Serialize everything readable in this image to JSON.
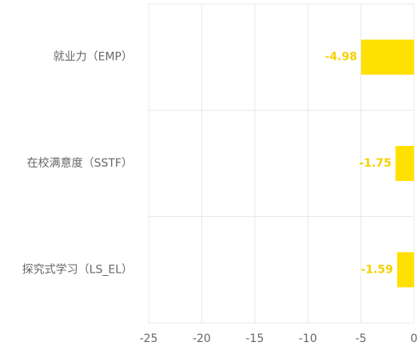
{
  "chart_data": {
    "type": "hbar",
    "categories": [
      "就业力（EMP）",
      "在校满意度（SSTF）",
      "探究式学习（LS_EL）"
    ],
    "values": [
      -4.98,
      -1.75,
      -1.59
    ],
    "color": "#FFE000",
    "label_color": "#F5D000",
    "xlim": [
      -25,
      0
    ],
    "xticks": [
      -25,
      -20,
      -15,
      -10,
      -5,
      0
    ],
    "grid": true
  }
}
